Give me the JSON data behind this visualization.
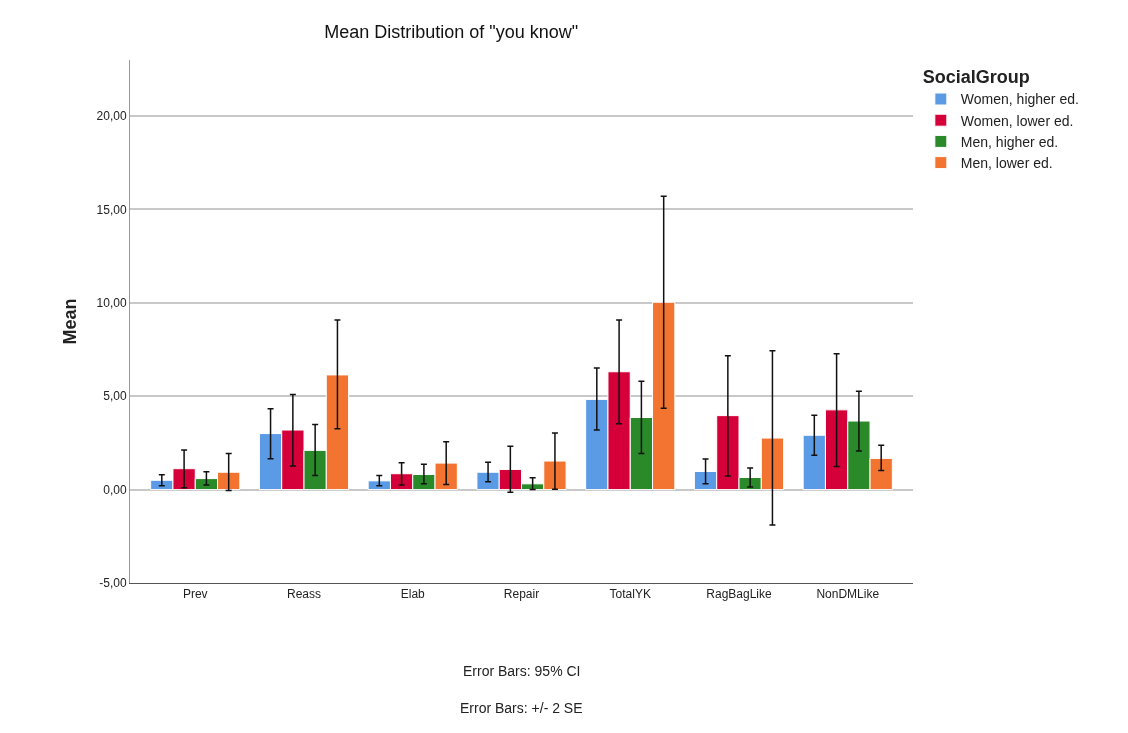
{
  "chart_data": {
    "type": "bar",
    "title": "Mean Distribution of \"you know\"",
    "ylabel": "Mean",
    "legend_title": "SocialGroup",
    "categories": [
      "Prev",
      "Reass",
      "Elab",
      "Repair",
      "TotalYK",
      "RagBagLike",
      "NonDMLike"
    ],
    "series": [
      {
        "name": "Women, higher ed.",
        "color": "#5b9be6",
        "values": [
          0.5,
          3.0,
          0.47,
          0.93,
          4.83,
          0.97,
          2.91
        ],
        "errors": [
          [
            0.2,
            0.8
          ],
          [
            1.65,
            4.33
          ],
          [
            0.2,
            0.75
          ],
          [
            0.42,
            1.47
          ],
          [
            3.19,
            6.51
          ],
          [
            0.32,
            1.64
          ],
          [
            1.84,
            3.98
          ]
        ]
      },
      {
        "name": "Women, lower ed.",
        "color": "#d5003a",
        "values": [
          1.12,
          3.19,
          0.85,
          1.08,
          6.31,
          3.96,
          4.27
        ],
        "errors": [
          [
            0.1,
            2.12
          ],
          [
            1.26,
            5.09
          ],
          [
            0.25,
            1.44
          ],
          [
            -0.14,
            2.32
          ],
          [
            3.53,
            9.08
          ],
          [
            0.73,
            7.16
          ],
          [
            1.24,
            7.28
          ]
        ]
      },
      {
        "name": "Men, higher ed.",
        "color": "#2a8a2a",
        "values": [
          0.59,
          2.1,
          0.81,
          0.31,
          3.86,
          0.65,
          3.67
        ],
        "errors": [
          [
            0.24,
            0.95
          ],
          [
            0.75,
            3.48
          ],
          [
            0.32,
            1.36
          ],
          [
            0.0,
            0.64
          ],
          [
            1.93,
            5.8
          ],
          [
            0.14,
            1.16
          ],
          [
            2.07,
            5.27
          ]
        ]
      },
      {
        "name": "Men, lower ed.",
        "color": "#f27430",
        "values": [
          0.93,
          6.14,
          1.42,
          1.53,
          10.03,
          2.76,
          1.67
        ],
        "errors": [
          [
            -0.05,
            1.93
          ],
          [
            3.26,
            9.08
          ],
          [
            0.27,
            2.56
          ],
          [
            0.02,
            3.03
          ],
          [
            4.36,
            15.71
          ],
          [
            -1.89,
            7.43
          ],
          [
            1.02,
            2.38
          ]
        ]
      }
    ],
    "ylim": [
      -5,
      23
    ],
    "yticks": [
      {
        "value": -5,
        "label": "-5,00"
      },
      {
        "value": 0,
        "label": "0,00"
      },
      {
        "value": 5,
        "label": "5,00"
      },
      {
        "value": 10,
        "label": "10,00"
      },
      {
        "value": 15,
        "label": "15,00"
      },
      {
        "value": 20,
        "label": "20,00"
      }
    ],
    "grid": "y",
    "legend": "top right",
    "annotations": [
      "Error Bars: 95% CI",
      "Error Bars: +/- 2 SE"
    ]
  }
}
